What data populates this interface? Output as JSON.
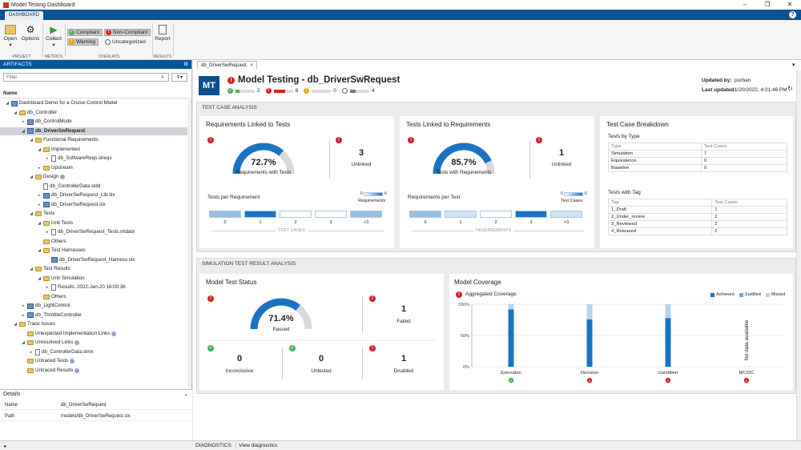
{
  "window": {
    "title": "Model Testing Dashboard"
  },
  "tabstrip": {
    "tab": "DASHBOARD"
  },
  "ribbon": {
    "open": "Open",
    "options": "Options",
    "collect": "Collect",
    "report": "Report",
    "groups": {
      "project": "PROJECT",
      "metrics": "METRICS",
      "overlays": "OVERLAYS",
      "results": "RESULTS"
    },
    "overlays": {
      "compliant": "Compliant",
      "noncompliant": "Non-Compliant",
      "warning": "Warning",
      "uncategorized": "Uncategorized"
    }
  },
  "artifacts": {
    "title": "ARTIFACTS",
    "filter_placeholder": "Filter",
    "col_name": "Name",
    "tree": [
      {
        "label": "Dashboard Demo for a Cruise Control Model",
        "level": 0,
        "exp": "down",
        "icon": "project"
      },
      {
        "label": "db_Controller",
        "level": 1,
        "exp": "down",
        "icon": "folder"
      },
      {
        "label": "db_ControlMode",
        "level": 2,
        "exp": "right",
        "icon": "model"
      },
      {
        "label": "db_DriverSwRequest",
        "level": 2,
        "exp": "down",
        "icon": "model",
        "selected": true
      },
      {
        "label": "Functional Requirements",
        "level": 3,
        "exp": "down",
        "icon": "folder"
      },
      {
        "label": "Implemented",
        "level": 4,
        "exp": "down",
        "icon": "folder"
      },
      {
        "label": "db_SoftwareReqs.slreqx",
        "level": 5,
        "exp": "right",
        "icon": "doc"
      },
      {
        "label": "Upstream",
        "level": 4,
        "exp": "right",
        "icon": "folder"
      },
      {
        "label": "Design",
        "level": 3,
        "exp": "down",
        "icon": "folder",
        "info": true
      },
      {
        "label": "db_ControllerData.sldd",
        "level": 4,
        "exp": "",
        "icon": "doc"
      },
      {
        "label": "db_DriverSwRequest_Lib.slx",
        "level": 4,
        "exp": "right",
        "icon": "model"
      },
      {
        "label": "db_DriverSwRequest.slx",
        "level": 4,
        "exp": "right",
        "icon": "model"
      },
      {
        "label": "Tests",
        "level": 3,
        "exp": "down",
        "icon": "folder"
      },
      {
        "label": "Unit Tests",
        "level": 4,
        "exp": "down",
        "icon": "folder"
      },
      {
        "label": "db_DriverSwRequest_Tests.mldatx",
        "level": 5,
        "exp": "right",
        "icon": "doc"
      },
      {
        "label": "Others",
        "level": 4,
        "exp": "",
        "icon": "folder"
      },
      {
        "label": "Test Harnesses",
        "level": 4,
        "exp": "down",
        "icon": "folder"
      },
      {
        "label": "db_DriverSwRequest_Harness.slx",
        "level": 5,
        "exp": "",
        "icon": "model"
      },
      {
        "label": "Test Results",
        "level": 3,
        "exp": "down",
        "icon": "folder"
      },
      {
        "label": "Unit Simulation",
        "level": 4,
        "exp": "down",
        "icon": "folder"
      },
      {
        "label": "Results: 2022-Jan-20 16:00:36",
        "level": 5,
        "exp": "right",
        "icon": "doc"
      },
      {
        "label": "Others",
        "level": 4,
        "exp": "",
        "icon": "folder"
      },
      {
        "label": "db_LightControl",
        "level": 2,
        "exp": "right",
        "icon": "model"
      },
      {
        "label": "db_ThrottleController",
        "level": 2,
        "exp": "right",
        "icon": "model"
      },
      {
        "label": "Trace Issues",
        "level": 1,
        "exp": "down",
        "icon": "folder"
      },
      {
        "label": "Unexpected Implementation Links",
        "level": 2,
        "exp": "",
        "icon": "folder",
        "info": true
      },
      {
        "label": "Unresolved Links",
        "level": 2,
        "exp": "down",
        "icon": "folder",
        "info": true
      },
      {
        "label": "db_ControllerData.slmx",
        "level": 3,
        "exp": "right",
        "icon": "doc"
      },
      {
        "label": "Untraced Tests",
        "level": 2,
        "exp": "",
        "icon": "folder",
        "info": true
      },
      {
        "label": "Untraced Results",
        "level": 2,
        "exp": "",
        "icon": "folder",
        "info": true
      }
    ]
  },
  "details": {
    "title": "Details",
    "name_label": "Name",
    "name_value": "db_DriverSwRequest",
    "path_label": "Path",
    "path_value": "models/db_DriverSwRequest.slx"
  },
  "doc_tab": "db_DriverSwRequest",
  "header": {
    "logo": "MT",
    "title": "Model Testing - db_DriverSwRequest",
    "counts": {
      "compliant": "2",
      "noncompliant": "8",
      "warning": "0",
      "uncategorized": "4"
    },
    "updated_by_label": "Updated by:",
    "updated_by_value": "purban",
    "last_updated_label": "Last updated:",
    "last_updated_value": "1/20/2022, 4:01:46 PM"
  },
  "test_case_analysis": {
    "title": "TEST CASE ANALYSIS",
    "req_linked": {
      "title": "Requirements Linked to Tests",
      "percent": "72.7%",
      "percent_value": 72.7,
      "percent_label": "Requirements with Tests",
      "unlinked": "3",
      "unlinked_label": "Unlinked",
      "dist_title": "Tests per Requirement",
      "legend_min": "0",
      "legend_max": "6",
      "legend_label": "Requirements",
      "bins": [
        "0",
        "1",
        "2",
        "3",
        ">3"
      ],
      "bin_shades": [
        0.3,
        1,
        0,
        0,
        0.3
      ],
      "axis": "TEST CASES"
    },
    "tests_linked": {
      "title": "Tests Linked to Requirements",
      "percent": "85.7%",
      "percent_value": 85.7,
      "percent_label": "Tests with Requirements",
      "unlinked": "1",
      "unlinked_label": "Unlinked",
      "dist_title": "Requirements per Test",
      "legend_min": "0",
      "legend_max": "6",
      "legend_label": "Test Cases",
      "bins": [
        "0",
        "1",
        "2",
        "3",
        ">3"
      ],
      "bin_shades": [
        0.3,
        0.05,
        0,
        1,
        0.05
      ],
      "axis": "REQUIREMENTS"
    },
    "breakdown": {
      "title": "Test Case Breakdown",
      "by_type_title": "Tests by Type",
      "type_col": "Type",
      "tc_col": "Test Cases",
      "types": [
        [
          "Simulation",
          "7"
        ],
        [
          "Equivalence",
          "0"
        ],
        [
          "Baseline",
          "0"
        ]
      ],
      "by_tag_title": "Tests with Tag",
      "tag_col": "Tag",
      "tags": [
        [
          "1_Draft",
          "1"
        ],
        [
          "2_Under_review",
          "2"
        ],
        [
          "3_Reviewed",
          "2"
        ],
        [
          "4_Released",
          "2"
        ]
      ]
    }
  },
  "sim_analysis": {
    "title": "SIMULATION TEST RESULT ANALYSIS",
    "status": {
      "title": "Model Test Status",
      "percent": "71.4%",
      "percent_value": 71.4,
      "percent_label": "Passed",
      "failed": "1",
      "failed_label": "Failed",
      "inconclusive": "0",
      "inconclusive_label": "Inconclusive",
      "untested": "0",
      "untested_label": "Untested",
      "disabled": "1",
      "disabled_label": "Disabled"
    },
    "coverage": {
      "title": "Model Coverage",
      "subtitle": "Aggregated Coverage",
      "legend": [
        "Achieved",
        "Justified",
        "Missed"
      ],
      "no_data": "No data available",
      "ticks": [
        "100%",
        "50%",
        "0%"
      ]
    }
  },
  "chart_data": {
    "type": "bar",
    "title": "Aggregated Coverage",
    "categories": [
      "Execution",
      "Decision",
      "Condition",
      "MC/DC"
    ],
    "series": [
      {
        "name": "Achieved",
        "values": [
          92,
          76,
          78,
          0
        ]
      },
      {
        "name": "Justified",
        "values": [
          0,
          0,
          0,
          0
        ]
      },
      {
        "name": "Missed",
        "values": [
          8,
          24,
          22,
          0
        ]
      }
    ],
    "ylim": [
      0,
      100
    ],
    "colors": {
      "Achieved": "#1a73c2",
      "Justified": "#6aa8dc",
      "Missed": "#b7d3ee"
    }
  },
  "statusbar": {
    "diagnostics": "DIAGNOSTICS",
    "view": "View diagnostics"
  },
  "colors": {
    "accent": "#0b5394",
    "gauge": "#1a73c2",
    "error": "#d62020",
    "ok": "#4caf50"
  }
}
